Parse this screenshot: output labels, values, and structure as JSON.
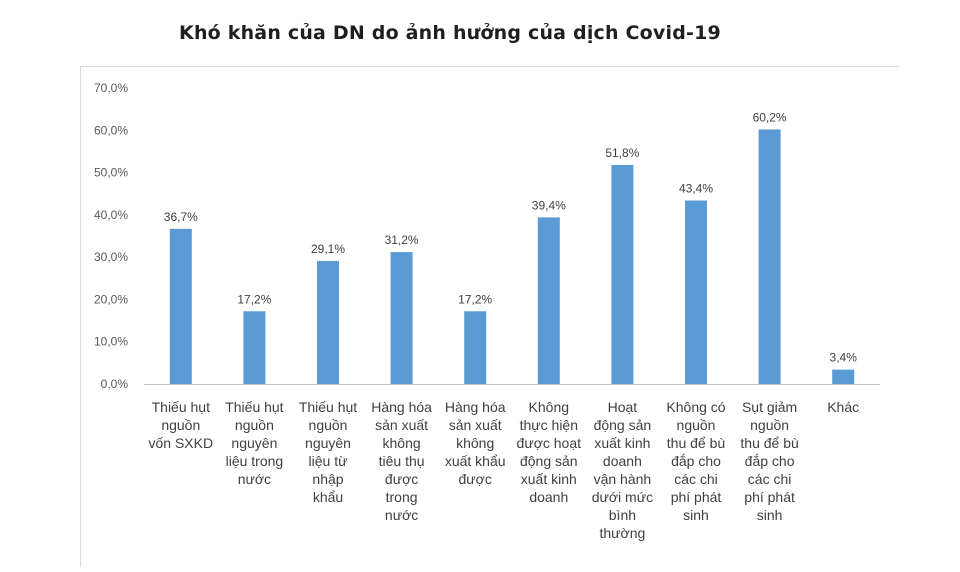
{
  "chart_data": {
    "type": "bar",
    "title": "Khó khăn của DN do ảnh hưởng của dịch Covid-19",
    "xlabel": "",
    "ylabel": "",
    "ylim": [
      0,
      70
    ],
    "yticks": [
      "0,0%",
      "10,0%",
      "20,0%",
      "30,0%",
      "40,0%",
      "50,0%",
      "60,0%",
      "70,0%"
    ],
    "categories": [
      "Thiếu hụt\nnguồn\nvốn SXKD",
      "Thiếu hụt\nnguồn\nnguyên\nliệu trong\nnước",
      "Thiếu hụt\nnguồn\nnguyên\nliệu từ\nnhập\nkhẩu",
      "Hàng hóa\nsản xuất\nkhông\ntiêu thụ\nđược\ntrong\nnước",
      "Hàng hóa\nsản xuất\nkhông\nxuất khẩu\nđược",
      "Không\nthực hiện\nđược hoạt\nđộng sản\nxuất kinh\ndoanh",
      "Hoạt\nđộng sản\nxuất kinh\ndoanh\nvận hành\ndưới mức\nbình\nthường",
      "Không có\nnguồn\nthu để bù\nđắp cho\ncác chi\nphí phát\nsinh",
      "Sụt giảm\nnguồn\nthu để bù\nđắp cho\ncác chi\nphí phát\nsinh",
      "Khác"
    ],
    "values": [
      36.7,
      17.2,
      29.1,
      31.2,
      17.2,
      39.4,
      51.8,
      43.4,
      60.2,
      3.4
    ],
    "data_labels": [
      "36,7%",
      "17,2%",
      "29,1%",
      "31,2%",
      "17,2%",
      "39,4%",
      "51,8%",
      "43,4%",
      "60,2%",
      "3,4%"
    ],
    "bar_color": "#5B9BD5",
    "grid": false,
    "legend": "none"
  }
}
